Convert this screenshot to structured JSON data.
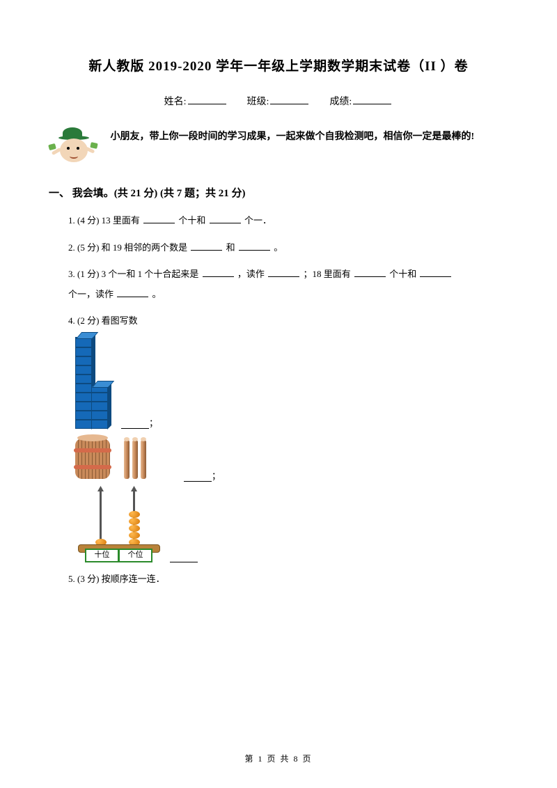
{
  "title": "新人教版 2019-2020 学年一年级上学期数学期末试卷（II ）卷",
  "info": {
    "name": "姓名:",
    "class": "班级:",
    "score": "成绩:"
  },
  "intro": "小朋友，带上你一段时间的学习成果，一起来做个自我检测吧，相信你一定是最棒的!",
  "section1": "一、 我会填。(共 21 分)  (共 7 题；共 21 分)",
  "q1": {
    "prefix": "1.  (4 分)  13 里面有",
    "mid": "个十和",
    "suffix": "个一．"
  },
  "q2": {
    "prefix": "2.  (5 分)  和 19 相邻的两个数是",
    "mid": "和",
    "suffix": "。"
  },
  "q3": {
    "p1": "3.   (1 分)   3 个一和 1 个十合起来是",
    "p2": "，读作",
    "p3": "；18 里面有",
    "p4": "个十和",
    "p5": "个一，读作",
    "p6": "。"
  },
  "q4": "4.  (2 分)  看图写数",
  "q5": "5.  (3 分)  按顺序连一连．",
  "abacus": {
    "tens": "十位",
    "ones": "个位"
  },
  "footer": {
    "left": "第 ",
    "page": "1",
    "mid": " 页 共 ",
    "total": "8",
    "right": " 页"
  },
  "semicolon": "；"
}
